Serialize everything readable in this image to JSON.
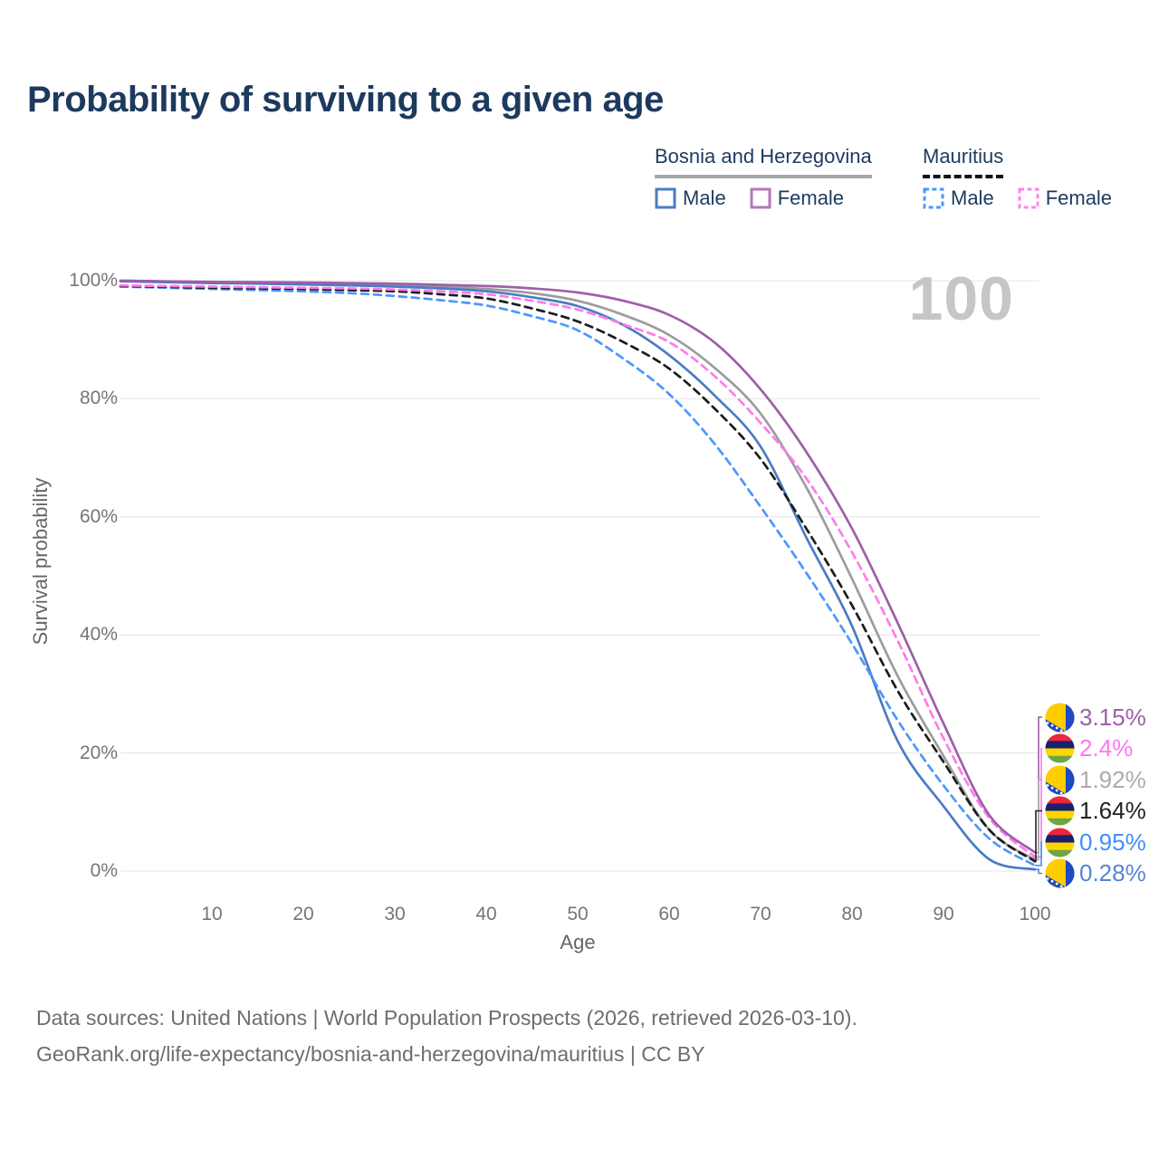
{
  "title": "Probability of surviving to a given age",
  "watermark_age": "100",
  "legend": {
    "groups": [
      {
        "label": "Bosnia and Herzegovina",
        "line_style": "solid",
        "line_color": "#a8a8a8",
        "items": [
          {
            "label": "Male",
            "color": "#4A7CC4",
            "dashed": false
          },
          {
            "label": "Female",
            "color": "#B476B8",
            "dashed": false
          }
        ]
      },
      {
        "label": "Mauritius",
        "line_style": "dashed",
        "line_color": "#141414",
        "items": [
          {
            "label": "Male",
            "color": "#4C97FF",
            "dashed": true
          },
          {
            "label": "Female",
            "color": "#FF85EC",
            "dashed": true
          }
        ]
      }
    ]
  },
  "chart_data": {
    "type": "line",
    "title": "Probability of surviving to a given age",
    "xlabel": "Age",
    "ylabel": "Survival probability",
    "xlim": [
      0,
      100
    ],
    "ylim": [
      0,
      100
    ],
    "grid": "horizontal",
    "x_ticks": [
      10,
      20,
      30,
      40,
      50,
      60,
      70,
      80,
      90,
      100
    ],
    "y_ticks": [
      {
        "value": 100,
        "label": "100%"
      },
      {
        "value": 80,
        "label": "80%"
      },
      {
        "value": 60,
        "label": "60%"
      },
      {
        "value": 40,
        "label": "40%"
      },
      {
        "value": 20,
        "label": "20%"
      },
      {
        "value": 0,
        "label": "0%"
      }
    ],
    "ages": [
      0,
      5,
      10,
      15,
      20,
      25,
      30,
      35,
      40,
      45,
      50,
      55,
      60,
      65,
      70,
      75,
      80,
      85,
      90,
      95,
      100
    ],
    "series": [
      {
        "name": "Bosnia and Herzegovina — Both sexes",
        "country": "Bosnia and Herzegovina",
        "sex": "both",
        "color": "#9D9D9D",
        "dashed": false,
        "values": [
          100,
          99.85,
          99.7,
          99.6,
          99.5,
          99.4,
          99.25,
          99.0,
          98.6,
          97.9,
          96.6,
          94.2,
          90.8,
          85.2,
          77.5,
          65,
          49.5,
          33,
          19.5,
          7,
          1.92
        ]
      },
      {
        "name": "Bosnia and Herzegovina — Male",
        "country": "Bosnia and Herzegovina",
        "sex": "male",
        "color": "#4A7CC4",
        "dashed": false,
        "values": [
          99.9,
          99.75,
          99.6,
          99.5,
          99.35,
          99.2,
          99.0,
          98.7,
          98.2,
          97.2,
          95.7,
          92.5,
          87.4,
          80.5,
          71.9,
          56.5,
          41.5,
          22,
          11,
          2,
          0.28
        ]
      },
      {
        "name": "Mauritius — Male",
        "country": "Mauritius",
        "sex": "male",
        "color": "#4C97FF",
        "dashed": true,
        "values": [
          99.0,
          98.8,
          98.6,
          98.4,
          98.2,
          97.9,
          97.4,
          96.7,
          95.8,
          94.0,
          91.6,
          86.8,
          80.8,
          72.3,
          61.7,
          50.5,
          38.5,
          25.5,
          14.5,
          5.5,
          0.95
        ]
      },
      {
        "name": "Mauritius — Both sexes",
        "country": "Mauritius",
        "sex": "both",
        "color": "#1C1C1C",
        "dashed": true,
        "values": [
          99.1,
          98.95,
          98.8,
          98.7,
          98.6,
          98.4,
          98.2,
          97.7,
          97.0,
          95.3,
          93.1,
          89.6,
          85.1,
          78.3,
          69.8,
          58,
          45,
          30.5,
          18.5,
          7,
          1.64
        ]
      },
      {
        "name": "Mauritius — Female",
        "country": "Mauritius",
        "sex": "female",
        "color": "#FF7BEB",
        "dashed": true,
        "values": [
          99.2,
          99.1,
          99.0,
          98.9,
          98.8,
          98.7,
          98.5,
          98.2,
          97.7,
          96.6,
          95.1,
          92.6,
          89.6,
          83.8,
          75.9,
          66.5,
          54,
          39,
          22.5,
          9,
          2.4
        ]
      },
      {
        "name": "Bosnia and Herzegovina — Female",
        "country": "Bosnia and Herzegovina",
        "sex": "female",
        "color": "#9E5FA7",
        "dashed": false,
        "values": [
          100,
          99.9,
          99.8,
          99.75,
          99.7,
          99.6,
          99.5,
          99.3,
          99.1,
          98.7,
          98.0,
          96.6,
          94.2,
          89.5,
          81.6,
          71,
          58,
          42,
          25,
          9.5,
          3.15
        ]
      }
    ],
    "end_labels": [
      {
        "label": "3.15%",
        "value": 3.15,
        "color": "#9E5FA7",
        "flag": "ba",
        "series": "Bosnia and Herzegovina — Female"
      },
      {
        "label": "2.4%",
        "value": 2.4,
        "color": "#FF77EC",
        "flag": "mu",
        "series": "Mauritius — Female"
      },
      {
        "label": "1.92%",
        "value": 1.92,
        "color": "#ABABAB",
        "flag": "ba",
        "series": "Bosnia and Herzegovina — Both sexes"
      },
      {
        "label": "1.64%",
        "value": 1.64,
        "color": "#222222",
        "flag": "mu",
        "series": "Mauritius — Both sexes"
      },
      {
        "label": "0.95%",
        "value": 0.95,
        "color": "#3F8FFF",
        "flag": "mu",
        "series": "Mauritius — Male"
      },
      {
        "label": "0.28%",
        "value": 0.28,
        "color": "#5585D6",
        "flag": "ba",
        "series": "Bosnia and Herzegovina — Male"
      }
    ]
  },
  "footer": {
    "line1": "Data sources: United Nations | World Population Prospects (2026, retrieved 2026-03-10).",
    "line2": "GeoRank.org/life-expectancy/bosnia-and-herzegovina/mauritius | CC BY"
  }
}
